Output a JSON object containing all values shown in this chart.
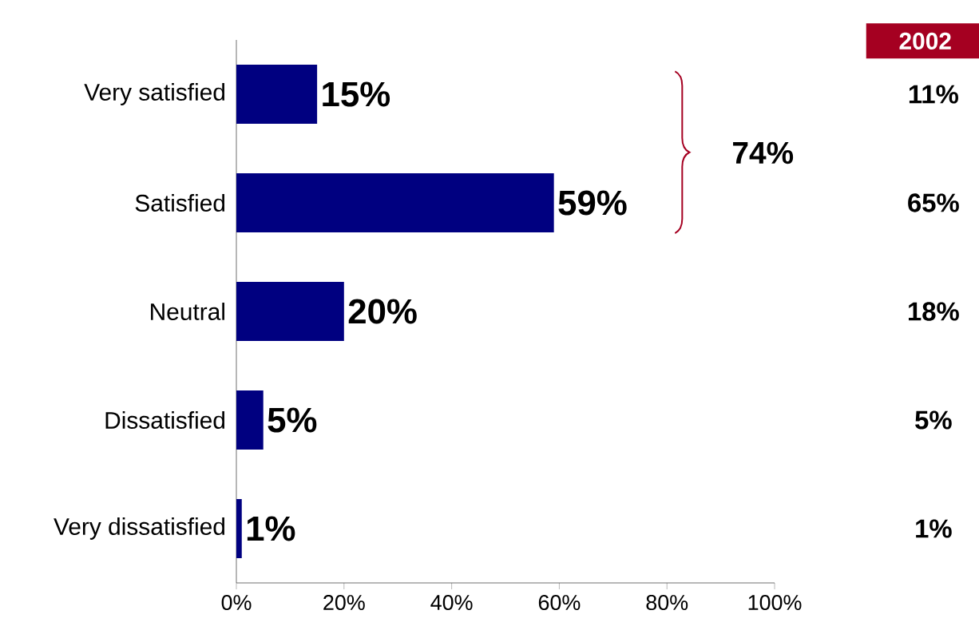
{
  "chart_data": {
    "type": "bar",
    "orientation": "horizontal",
    "categories": [
      "Very satisfied",
      "Satisfied",
      "Neutral",
      "Dissatisfied",
      "Very dissatisfied"
    ],
    "values": [
      15,
      59,
      20,
      5,
      1
    ],
    "value_labels": [
      "15%",
      "59%",
      "20%",
      "5%",
      "1%"
    ],
    "color": "#000080",
    "xlim": [
      0,
      100
    ],
    "xticks": [
      {
        "value": 0,
        "label": "0%"
      },
      {
        "value": 20,
        "label": "20%"
      },
      {
        "value": 40,
        "label": "40%"
      },
      {
        "value": 60,
        "label": "60%"
      },
      {
        "value": 80,
        "label": "80%"
      },
      {
        "value": 100,
        "label": "100%"
      }
    ],
    "grid": false,
    "annotations": [
      "74%",
      "2002",
      "11%",
      "65%",
      "18%",
      "5%",
      "1%"
    ]
  }
}
